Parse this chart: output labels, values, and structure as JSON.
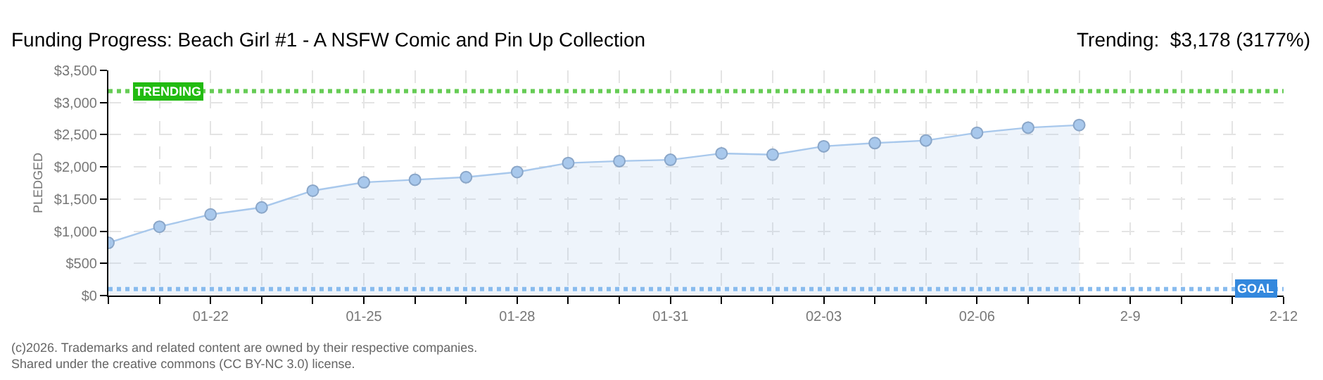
{
  "chart_data": {
    "type": "area",
    "title": "Funding Progress: Beach Girl #1 - A NSFW Comic and Pin Up Collection",
    "subtitle": "Trending:  $3,178 (3177%)",
    "ylabel": "PLEDGED",
    "x": [
      "--01-20",
      "--01-21",
      "--01-22",
      "--01-23",
      "--01-24",
      "--01-25",
      "--01-26",
      "--01-27",
      "--01-28",
      "--01-29",
      "--01-30",
      "--01-31",
      "--02-01",
      "--02-02",
      "--02-03",
      "--02-04",
      "--02-05",
      "--02-06",
      "--02-07",
      "--02-08"
    ],
    "series": [
      {
        "color": "#a8c8ec",
        "values": [
          820,
          1070,
          1260,
          1370,
          1630,
          1760,
          1800,
          1840,
          1920,
          2060,
          2090,
          2110,
          2210,
          2190,
          2320,
          2370,
          2410,
          2530,
          2610,
          2650
        ]
      }
    ],
    "xlim": [
      "--01-20",
      "--02-12"
    ],
    "xticks": [
      {
        "value": "--01-20",
        "label": null
      },
      {
        "value": "--01-21",
        "label": null
      },
      {
        "value": "--01-22",
        "label": "01-22"
      },
      {
        "value": "--01-23",
        "label": null
      },
      {
        "value": "--01-24",
        "label": null
      },
      {
        "value": "--01-25",
        "label": "01-25"
      },
      {
        "value": "--01-26",
        "label": null
      },
      {
        "value": "--01-27",
        "label": null
      },
      {
        "value": "--01-28",
        "label": "01-28"
      },
      {
        "value": "--01-29",
        "label": null
      },
      {
        "value": "--01-30",
        "label": null
      },
      {
        "value": "--01-31",
        "label": "01-31"
      },
      {
        "value": "--02-01",
        "label": null
      },
      {
        "value": "--02-02",
        "label": null
      },
      {
        "value": "--02-03",
        "label": "02-03"
      },
      {
        "value": "--02-04",
        "label": null
      },
      {
        "value": "--02-05",
        "label": null
      },
      {
        "value": "--02-06",
        "label": "02-06"
      },
      {
        "value": "--02-07",
        "label": null
      },
      {
        "value": "--02-08",
        "label": null
      },
      {
        "value": "--02-09",
        "label": "2-9"
      },
      {
        "value": "--02-10",
        "label": null
      },
      {
        "value": "--02-11",
        "label": null
      },
      {
        "value": "--02-12",
        "label": "2-12"
      }
    ],
    "ylim": [
      0,
      3500
    ],
    "yticks": [
      {
        "value": 0,
        "label": "$0"
      },
      {
        "value": 500,
        "label": "$500"
      },
      {
        "value": 1000,
        "label": "$1,000"
      },
      {
        "value": 1500,
        "label": "$1,500"
      },
      {
        "value": 2000,
        "label": "$2,000"
      },
      {
        "value": 2500,
        "label": "$2,500"
      },
      {
        "value": 3000,
        "label": "$3,000"
      },
      {
        "value": 3500,
        "label": "$3,500"
      }
    ],
    "ref_lines": [
      {
        "axis": "y",
        "value": 3178,
        "label": "TRENDING",
        "color": "#66cc55",
        "line_style": "dotted"
      },
      {
        "axis": "y",
        "value": 100,
        "label": "GOAL",
        "color": "#88bbee",
        "line_style": "dotted"
      }
    ],
    "annotations": [
      "(c)2026. Trademarks and related content are owned by their respective companies.",
      "Shared under the creative commons (CC BY-NC 3.0) license."
    ],
    "grid": true,
    "marker": "circle"
  }
}
